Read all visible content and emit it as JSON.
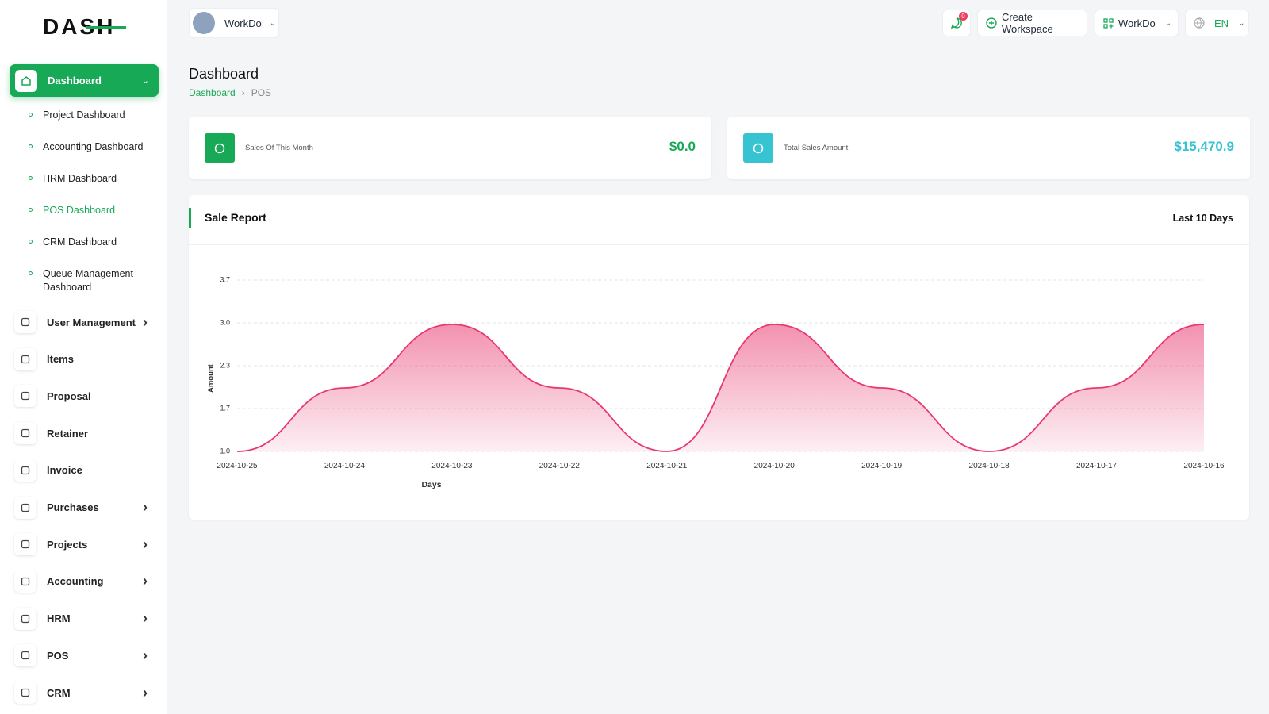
{
  "logo": "DASH",
  "topbar": {
    "workspace": "WorkDo",
    "notification_count": 0,
    "create_workspace": "Create Workspace",
    "workspace_menu": "WorkDo",
    "language": "EN"
  },
  "sidebar": {
    "active": {
      "label": "Dashboard"
    },
    "submenu": [
      "Project Dashboard",
      "Accounting Dashboard",
      "HRM Dashboard",
      "POS Dashboard",
      "CRM Dashboard",
      "Queue Management Dashboard"
    ],
    "submenu_active": 3,
    "items": [
      {
        "label": "User Management",
        "submenu": true
      },
      {
        "label": "Items",
        "submenu": false
      },
      {
        "label": "Proposal",
        "submenu": false
      },
      {
        "label": "Retainer",
        "submenu": false
      },
      {
        "label": "Invoice",
        "submenu": false
      },
      {
        "label": "Purchases",
        "submenu": true
      },
      {
        "label": "Projects",
        "submenu": true
      },
      {
        "label": "Accounting",
        "submenu": true
      },
      {
        "label": "HRM",
        "submenu": true
      },
      {
        "label": "POS",
        "submenu": true
      },
      {
        "label": "CRM",
        "submenu": true
      }
    ]
  },
  "header": {
    "title": "Dashboard",
    "breadcrumb": [
      "Dashboard",
      "POS"
    ]
  },
  "cards": [
    {
      "label": "Sales Of This Month",
      "value": "$0.0",
      "color": "#18a957"
    },
    {
      "label": "Total Sales Amount",
      "value": "$15,470.9",
      "color": "#36c3d2"
    }
  ],
  "chart_data": {
    "type": "area",
    "title": "Sale Report",
    "period": "Last 10 Days",
    "x_label": "Days",
    "y_label": "Amount",
    "categories": [
      "2024-10-25",
      "2024-10-24",
      "2024-10-23",
      "2024-10-22",
      "2024-10-21",
      "2024-10-20",
      "2024-10-19",
      "2024-10-18",
      "2024-10-17",
      "2024-10-16"
    ],
    "series": [
      {
        "name": "Amount",
        "color": "#e8386f",
        "values": [
          1,
          2,
          3,
          2,
          1,
          3,
          2,
          1,
          2,
          3
        ]
      }
    ],
    "ylim": [
      1,
      3.7
    ],
    "yticks": [
      {
        "value": 1,
        "label": "1.0"
      },
      {
        "value": 1.675,
        "label": "1.7"
      },
      {
        "value": 2.35,
        "label": "2.3"
      },
      {
        "value": 3.025,
        "label": "3.0"
      },
      {
        "value": 3.7,
        "label": "3.7"
      }
    ],
    "grid": true
  }
}
